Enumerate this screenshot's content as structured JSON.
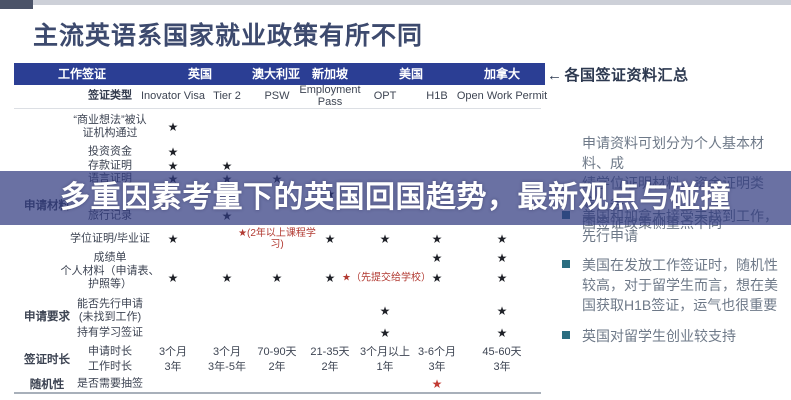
{
  "title": "主流英语系国家就业政策有所不同",
  "banner": {
    "text": "多重因素考量下的英国回国趋势，最新观点与碰撞"
  },
  "summary_note": {
    "icon": "←",
    "text": "各国签证资料汇总"
  },
  "colors": {
    "header_bar": "#2b3e94",
    "overlay": "rgba(49,58,127,0.72)",
    "accent_red": "#b23a32",
    "bullet_teal": "#2a6d80",
    "title_text": "#3d4a6e"
  },
  "table": {
    "corner_header": "工作签证",
    "countries": [
      "英国",
      "澳大利亚",
      "新加坡",
      "美国",
      "加拿大"
    ],
    "groups": [
      {
        "label": "申请材料"
      },
      {
        "label": "申请要求"
      },
      {
        "label": "签证时长"
      },
      {
        "label": "随机性"
      }
    ],
    "rows": [
      {
        "label": "签证类型",
        "cells": [
          "Inovator Visa",
          "Tier 2",
          "PSW",
          "Employment\nPass",
          "OPT",
          "H1B",
          "Open Work Permit"
        ]
      },
      {
        "label": "“商业想法”被认\n证机构通过",
        "cells": [
          "★",
          null,
          null,
          null,
          null,
          null,
          null
        ]
      },
      {
        "label": "投资资金",
        "cells": [
          "★",
          null,
          null,
          null,
          null,
          null,
          null
        ]
      },
      {
        "label": "存款证明",
        "cells": [
          "★",
          "★",
          null,
          null,
          null,
          null,
          null
        ]
      },
      {
        "label": "语言证明",
        "cells": [
          "★",
          "★",
          "★",
          null,
          null,
          null,
          null
        ]
      },
      {
        "label": "",
        "cells": [
          null,
          null,
          null,
          "★",
          null,
          null,
          null
        ]
      },
      {
        "label": "旅行记录",
        "cells": [
          null,
          "★",
          null,
          null,
          null,
          null,
          null
        ]
      },
      {
        "label": "学位证明/毕业证",
        "cells": [
          "★",
          null,
          {
            "red_note": "★(2年以上课程学习)"
          },
          "★",
          "★",
          "★",
          "★"
        ]
      },
      {
        "label": "成绩单",
        "cells": [
          null,
          null,
          null,
          null,
          null,
          "★",
          "★"
        ]
      },
      {
        "label": "个人材料（申请表、\n护照等）",
        "cells": [
          "★",
          "★",
          "★",
          "★",
          {
            "red_note": "★（先提交给学校）"
          },
          "★",
          "★"
        ]
      },
      {
        "label": "能否先行申请\n(未找到工作)",
        "cells": [
          null,
          null,
          null,
          null,
          "★",
          null,
          "★"
        ]
      },
      {
        "label": "持有学习签证",
        "cells": [
          null,
          null,
          null,
          null,
          "★",
          null,
          "★"
        ]
      },
      {
        "label": "申请时长",
        "cells": [
          "3个月",
          "3个月",
          "70-90天",
          "21-35天",
          "3个月以上",
          "3-6个月",
          "45-60天"
        ]
      },
      {
        "label": "工作时长",
        "cells": [
          "3年",
          "3年-5年",
          "2年",
          "2年",
          "1年",
          "3年",
          "3年"
        ]
      },
      {
        "label": "是否需要抽签",
        "cells": [
          null,
          null,
          null,
          null,
          null,
          {
            "red_star": true
          },
          null
        ]
      }
    ]
  },
  "insights": [
    {
      "bullet": false,
      "lines": [
        "申请资料可划分为个人基本材料、成",
        "绩学位证明材料、资金证明类等，各",
        "国签证政策侧重点不同"
      ]
    },
    {
      "bullet": true,
      "lines": [
        "美国和加拿大接受未找到工作，",
        "先行申请"
      ]
    },
    {
      "bullet": true,
      "lines": [
        "美国在发放工作签证时，随机性",
        "较高，对于留学生而言，想在美",
        "国获取H1B签证，运气也很重要"
      ]
    },
    {
      "bullet": true,
      "lines": [
        "英国对留学生创业较支持"
      ]
    }
  ]
}
